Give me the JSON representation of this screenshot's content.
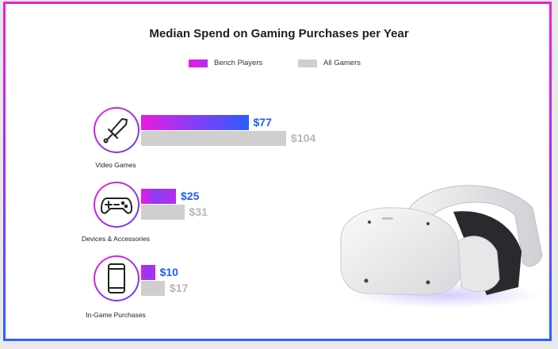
{
  "chart_data": {
    "type": "bar",
    "title": "Median Spend on Gaming Purchases per Year",
    "categories": [
      "Video Games",
      "Devices & Accessories",
      "In-Game Purchases"
    ],
    "series": [
      {
        "name": "Bench Players",
        "values": [
          77,
          25,
          10
        ],
        "labels": [
          "$77",
          "$25",
          "$10"
        ]
      },
      {
        "name": "All Gamers",
        "values": [
          104,
          31,
          17
        ],
        "labels": [
          "$104",
          "$31",
          "$17"
        ]
      }
    ],
    "orientation": "horizontal",
    "legend": "top-center"
  },
  "colors": {
    "bench_start": "#e81be0",
    "bench_end": "#2a5cff",
    "all_gamers": "#cfcfcf",
    "bench_label": "#1f5cff",
    "all_label": "#b7b7b7"
  },
  "icons": [
    "sword-icon",
    "gamepad-icon",
    "smartphone-icon"
  ]
}
